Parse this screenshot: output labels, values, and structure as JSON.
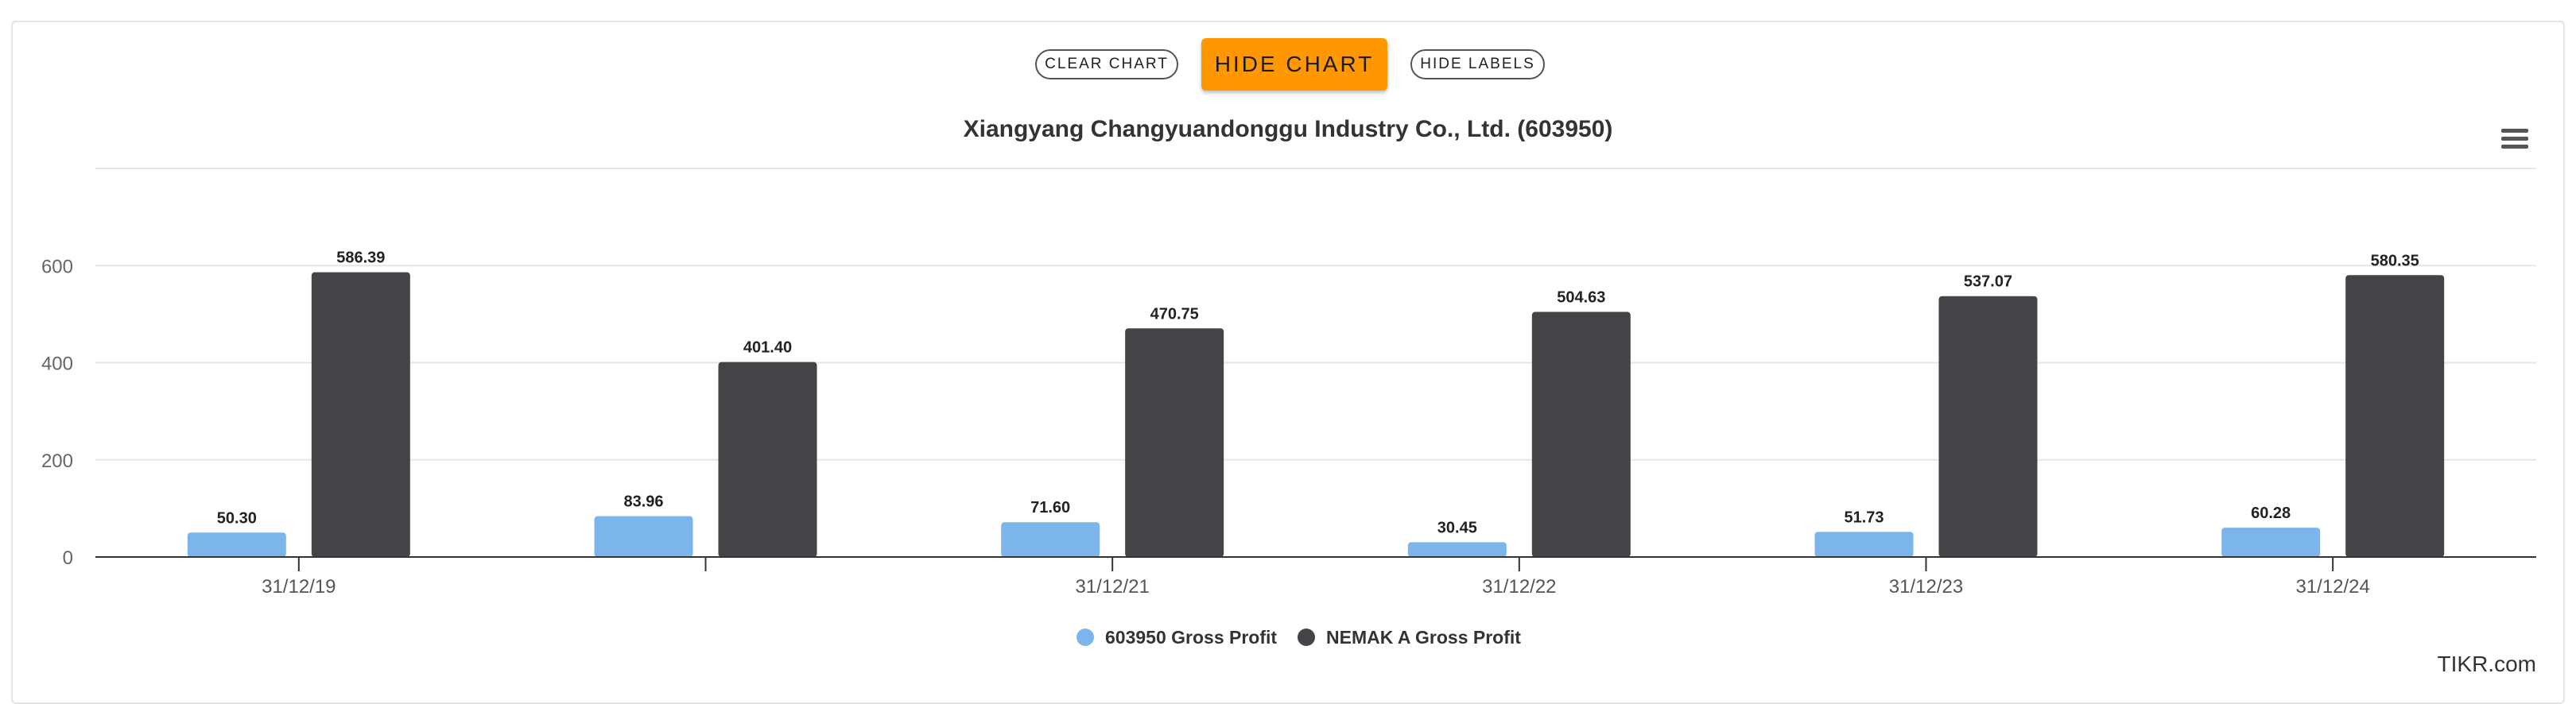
{
  "toolbar": {
    "clear_label": "CLEAR CHART",
    "hide_chart_label": "HIDE CHART",
    "hide_labels_label": "HIDE LABELS"
  },
  "menu_icon": "hamburger-menu-icon",
  "credit": "TIKR.com",
  "colors": {
    "series1": "#7cb5ec",
    "series2": "#434348",
    "accent": "#ff9800"
  },
  "chart_data": {
    "type": "bar",
    "title": "Xiangyang Changyuandonggu Industry Co., Ltd. (603950)",
    "categories": [
      "31/12/19",
      "",
      "31/12/21",
      "31/12/22",
      "31/12/23",
      "31/12/24"
    ],
    "series": [
      {
        "name": "603950 Gross Profit",
        "values": [
          50.3,
          83.96,
          71.6,
          30.45,
          51.73,
          60.28
        ]
      },
      {
        "name": "NEMAK A Gross Profit",
        "values": [
          586.39,
          401.4,
          470.75,
          504.63,
          537.07,
          580.35
        ]
      }
    ],
    "yticks": [
      0,
      200,
      400,
      600
    ],
    "ylim": [
      0,
      800
    ],
    "grid": true,
    "data_labels": true,
    "legend_position": "bottom-center"
  }
}
